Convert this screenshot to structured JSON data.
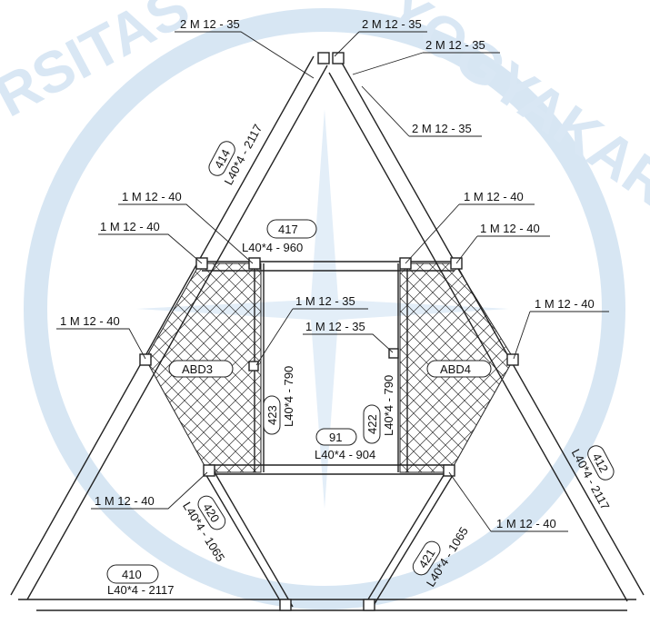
{
  "watermark": {
    "left": "RSITAS",
    "right": "YOGYAKARTA"
  },
  "bolt_labels": [
    "2 M 12 - 35",
    "2 M 12 - 35",
    "2 M 12 - 35",
    "2 M 12 - 35",
    "1 M 12 - 40",
    "1 M 12 - 40",
    "1 M 12 - 40",
    "1 M 12 - 40",
    "1 M 12 - 40",
    "1 M 12 - 35",
    "1 M 12 - 35",
    "1 M 12 - 40",
    "1 M 12 - 40",
    "1 M 12 - 40"
  ],
  "members": [
    {
      "mark": "414",
      "section": "L40*4  - 2117"
    },
    {
      "mark": "417",
      "section": "L40*4  - 960"
    },
    {
      "mark": "423",
      "section": "L40*4  - 790"
    },
    {
      "mark": "422",
      "section": "L40*4  - 790"
    },
    {
      "mark": "91",
      "section": "L40*4  - 904"
    },
    {
      "mark": "412",
      "section": "L40*4  - 2117"
    },
    {
      "mark": "420",
      "section": "L40*4  - 1065"
    },
    {
      "mark": "421",
      "section": "L40*4  - 1065"
    },
    {
      "mark": "410",
      "section": "L40*4  - 2117"
    }
  ],
  "panels": [
    "ABD3",
    "ABD4"
  ]
}
